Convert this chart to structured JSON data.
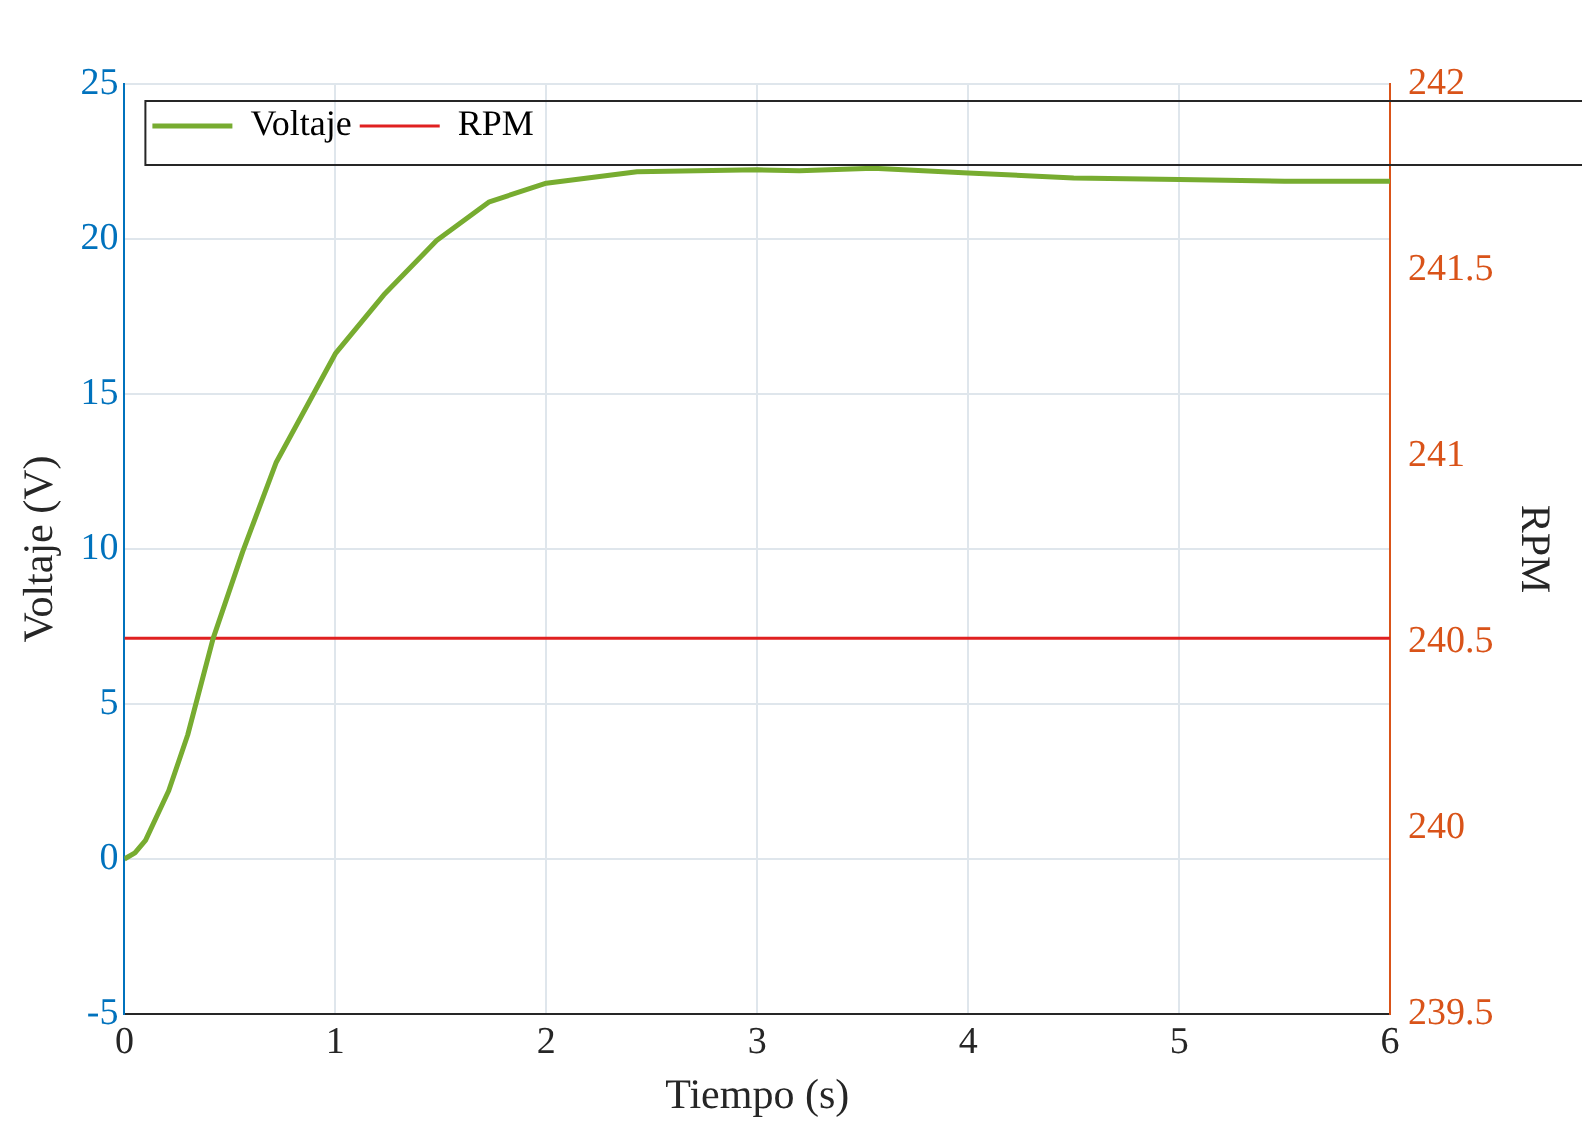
{
  "chart_data": {
    "type": "line",
    "xlabel": "Tiempo (s)",
    "ylabel": "Voltaje (V)",
    "y2label": "RPM",
    "xlim": [
      0,
      6
    ],
    "xticks": [
      0,
      1,
      2,
      3,
      4,
      5,
      6
    ],
    "ylim": [
      -5,
      25
    ],
    "yticks": [
      -5,
      0,
      5,
      10,
      15,
      20,
      25
    ],
    "y2lim": [
      239.5,
      242
    ],
    "y2ticks": [
      239.5,
      240,
      240.5,
      241,
      241.5,
      242
    ],
    "grid": true,
    "legend": "top left",
    "marker": "none",
    "line_style": "solid",
    "series": [
      {
        "name": "Voltaje",
        "color": "#77ac30",
        "x": [
          0,
          0.05,
          0.1,
          0.21,
          0.3,
          0.42,
          0.56,
          0.72,
          1,
          1.23,
          1.48,
          1.73,
          2,
          2.43,
          3,
          3.2,
          3.55,
          4,
          4.5,
          5,
          5.5,
          6
        ],
        "values": [
          0,
          0.2,
          0.6,
          2.2,
          4,
          7.1,
          9.9,
          12.8,
          16.3,
          18.2,
          19.95,
          21.2,
          21.8,
          22.17,
          22.23,
          22.2,
          22.28,
          22.13,
          21.97,
          21.92,
          21.86,
          21.86
        ]
      },
      {
        "name": "RPM",
        "color": "#e02020",
        "axis": "y2",
        "x": [
          0,
          6
        ],
        "values": [
          240.51,
          240.51
        ]
      }
    ]
  }
}
